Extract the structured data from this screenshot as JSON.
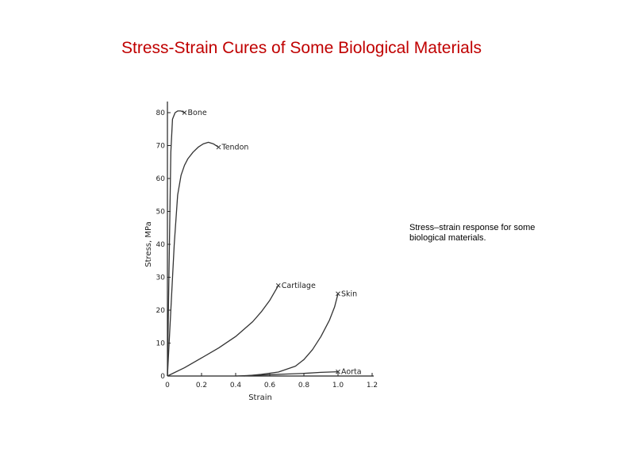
{
  "title": "Stress-Strain Cures of Some Biological Materials",
  "caption": "Stress–strain response for some biological materials.",
  "chart_data": {
    "type": "line",
    "xlabel": "Strain",
    "ylabel": "Stress, MPa",
    "xlim": [
      0,
      1.2
    ],
    "ylim": [
      0,
      80
    ],
    "x_ticks": [
      "0",
      "0.2",
      "0.4",
      "0.6",
      "0.8",
      "1.0",
      "1.2"
    ],
    "y_ticks": [
      "0",
      "10",
      "20",
      "30",
      "40",
      "50",
      "60",
      "70",
      "80"
    ],
    "grid": false,
    "legend": "inline labels at curve ends",
    "series": [
      {
        "name": "Bone",
        "x": [
          0,
          0.01,
          0.02,
          0.03,
          0.045,
          0.06,
          0.08,
          0.1
        ],
        "y": [
          0,
          35,
          68,
          78,
          80,
          80.5,
          80.5,
          80
        ]
      },
      {
        "name": "Tendon",
        "x": [
          0,
          0.02,
          0.04,
          0.06,
          0.08,
          0.1,
          0.12,
          0.15,
          0.18,
          0.21,
          0.24,
          0.27,
          0.3
        ],
        "y": [
          0,
          20,
          40,
          55,
          61,
          64,
          66,
          68,
          69.5,
          70.5,
          71,
          70.5,
          69.5
        ]
      },
      {
        "name": "Cartilage",
        "x": [
          0,
          0.1,
          0.2,
          0.3,
          0.4,
          0.5,
          0.55,
          0.6,
          0.65
        ],
        "y": [
          0,
          2.5,
          5.5,
          8.5,
          12,
          16.5,
          19.5,
          23,
          27.5
        ]
      },
      {
        "name": "Skin",
        "x": [
          0.45,
          0.55,
          0.65,
          0.75,
          0.8,
          0.85,
          0.9,
          0.95,
          0.98,
          1.0
        ],
        "y": [
          0,
          0.5,
          1.2,
          3,
          5,
          8,
          12,
          17,
          21,
          25
        ]
      },
      {
        "name": "Aorta",
        "x": [
          0.4,
          0.5,
          0.6,
          0.7,
          0.8,
          0.9,
          1.0
        ],
        "y": [
          0,
          0.2,
          0.4,
          0.6,
          0.8,
          1.1,
          1.3
        ]
      }
    ]
  }
}
